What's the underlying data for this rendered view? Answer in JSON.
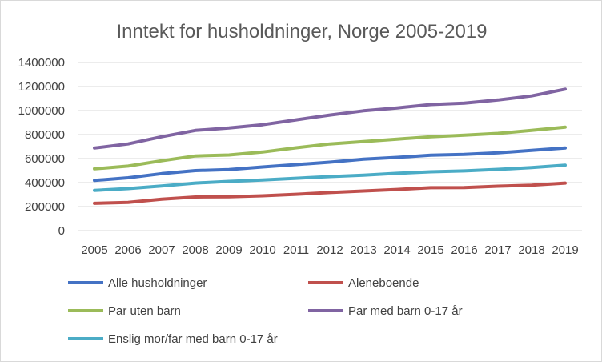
{
  "chart_data": {
    "type": "line",
    "title": "Inntekt for husholdninger, Norge 2005-2019",
    "xlabel": "",
    "ylabel": "",
    "x": [
      "2005",
      "2006",
      "2007",
      "2008",
      "2009",
      "2010",
      "2011",
      "2012",
      "2013",
      "2014",
      "2015",
      "2016",
      "2017",
      "2018",
      "2019"
    ],
    "y_ticks": [
      "0",
      "200000",
      "400000",
      "600000",
      "800000",
      "1000000",
      "1200000",
      "1400000"
    ],
    "ylim": [
      0,
      1400000
    ],
    "grid": true,
    "legend_position": "bottom",
    "series": [
      {
        "name": "Alle husholdninger",
        "color": "#4472c4",
        "values": [
          418000,
          440000,
          475000,
          500000,
          508000,
          530000,
          550000,
          570000,
          595000,
          610000,
          628000,
          635000,
          648000,
          668000,
          688000
        ]
      },
      {
        "name": "Aleneboende",
        "color": "#c0504d",
        "values": [
          227000,
          235000,
          262000,
          280000,
          282000,
          290000,
          303000,
          317000,
          330000,
          343000,
          357000,
          358000,
          370000,
          378000,
          396000
        ]
      },
      {
        "name": "Par uten barn",
        "color": "#9bbb59",
        "values": [
          515000,
          537000,
          582000,
          622000,
          630000,
          655000,
          690000,
          722000,
          742000,
          762000,
          782000,
          795000,
          810000,
          835000,
          862000
        ]
      },
      {
        "name": "Par med barn 0-17 år",
        "color": "#8064a2",
        "values": [
          688000,
          722000,
          782000,
          835000,
          855000,
          882000,
          923000,
          963000,
          998000,
          1022000,
          1050000,
          1062000,
          1088000,
          1122000,
          1178000
        ]
      },
      {
        "name": "Enslig mor/far med barn 0-17 år",
        "color": "#4bacc6",
        "values": [
          335000,
          350000,
          372000,
          396000,
          410000,
          422000,
          436000,
          450000,
          462000,
          477000,
          490000,
          497000,
          510000,
          525000,
          545000
        ]
      }
    ]
  }
}
